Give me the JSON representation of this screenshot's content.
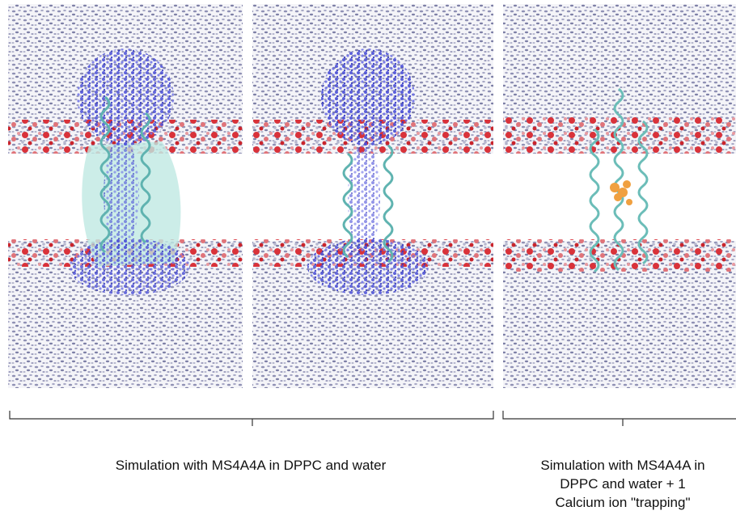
{
  "captions": {
    "left": "Simulation with MS4A4A in DPPC and water",
    "right_lines": [
      "Simulation with MS4A4A in",
      "DPPC and water + 1",
      "Calcium ion \"trapping\""
    ]
  }
}
